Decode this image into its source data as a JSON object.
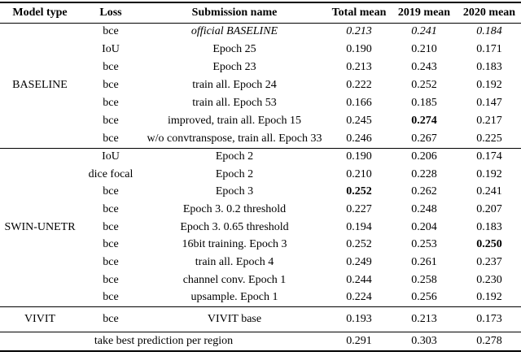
{
  "table": {
    "columns": [
      "Model type",
      "Loss",
      "Submission name",
      "Total mean",
      "2019 mean",
      "2020 mean"
    ],
    "sections": [
      {
        "model_type": "BASELINE",
        "rows": [
          {
            "loss": "bce",
            "name": "official BASELINE",
            "total": "0.213",
            "mean2019": "0.241",
            "mean2020": "0.184",
            "italic": true
          },
          {
            "loss": "IoU",
            "name": "Epoch 25",
            "total": "0.190",
            "mean2019": "0.210",
            "mean2020": "0.171"
          },
          {
            "loss": "bce",
            "name": "Epoch 23",
            "total": "0.213",
            "mean2019": "0.243",
            "mean2020": "0.183"
          },
          {
            "loss": "bce",
            "name": "train all. Epoch 24",
            "total": "0.222",
            "mean2019": "0.252",
            "mean2020": "0.192"
          },
          {
            "loss": "bce",
            "name": "train all. Epoch 53",
            "total": "0.166",
            "mean2019": "0.185",
            "mean2020": "0.147"
          },
          {
            "loss": "bce",
            "name": "improved, train all. Epoch 15",
            "total": "0.245",
            "mean2019": "0.274",
            "mean2020": "0.217",
            "bold": [
              "mean2019"
            ]
          },
          {
            "loss": "bce",
            "name": "w/o convtranspose, train all. Epoch 33",
            "total": "0.246",
            "mean2019": "0.267",
            "mean2020": "0.225"
          }
        ]
      },
      {
        "model_type": "SWIN-UNETR",
        "rows": [
          {
            "loss": "IoU",
            "name": "Epoch 2",
            "total": "0.190",
            "mean2019": "0.206",
            "mean2020": "0.174"
          },
          {
            "loss": "dice focal",
            "name": "Epoch 2",
            "total": "0.210",
            "mean2019": "0.228",
            "mean2020": "0.192"
          },
          {
            "loss": "bce",
            "name": "Epoch 3",
            "total": "0.252",
            "mean2019": "0.262",
            "mean2020": "0.241",
            "bold": [
              "total"
            ]
          },
          {
            "loss": "bce",
            "name": "Epoch 3. 0.2 threshold",
            "total": "0.227",
            "mean2019": "0.248",
            "mean2020": "0.207"
          },
          {
            "loss": "bce",
            "name": "Epoch 3. 0.65 threshold",
            "total": "0.194",
            "mean2019": "0.204",
            "mean2020": "0.183"
          },
          {
            "loss": "bce",
            "name": "16bit training. Epoch 3",
            "total": "0.252",
            "mean2019": "0.253",
            "mean2020": "0.250",
            "bold": [
              "mean2020"
            ]
          },
          {
            "loss": "bce",
            "name": "train all. Epoch 4",
            "total": "0.249",
            "mean2019": "0.261",
            "mean2020": "0.237"
          },
          {
            "loss": "bce",
            "name": "channel conv. Epoch 1",
            "total": "0.244",
            "mean2019": "0.258",
            "mean2020": "0.230"
          },
          {
            "loss": "bce",
            "name": "upsample. Epoch 1",
            "total": "0.224",
            "mean2019": "0.256",
            "mean2020": "0.192"
          }
        ]
      },
      {
        "model_type": "VIVIT",
        "rows": [
          {
            "loss": "bce",
            "name": "VIVIT base",
            "total": "0.193",
            "mean2019": "0.213",
            "mean2020": "0.173"
          }
        ]
      }
    ],
    "footer": {
      "label": "take best prediction per region",
      "total": "0.291",
      "mean2019": "0.303",
      "mean2020": "0.278"
    }
  }
}
